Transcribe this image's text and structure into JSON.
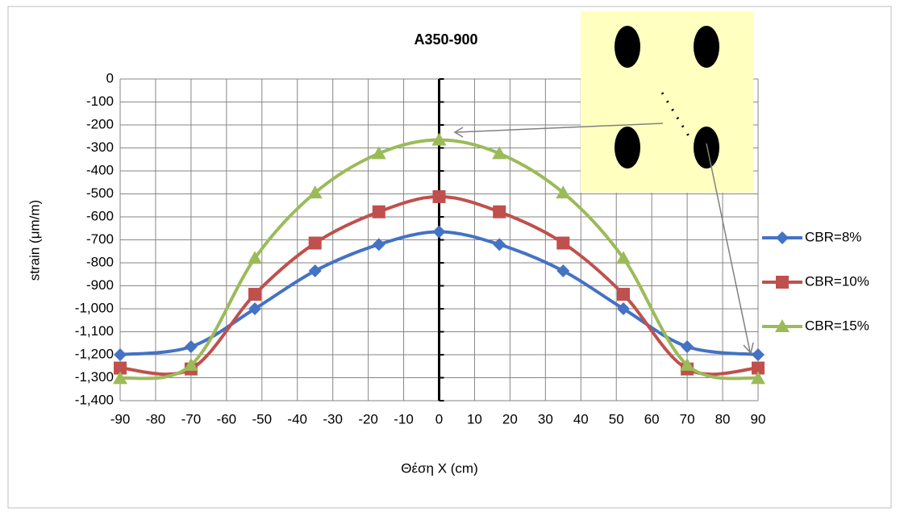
{
  "chart_data": {
    "type": "line",
    "title": "A350-900",
    "x_label": "Θέση X (cm)",
    "y_label": "strain (μm/m)",
    "x": [
      -90,
      -70,
      -52,
      -35,
      -17,
      0,
      17,
      35,
      52,
      70,
      90
    ],
    "series": [
      {
        "name": "CBR=8%",
        "color": "#4472c4",
        "marker": "diamond",
        "values": [
          -1200,
          -1165,
          -1000,
          -835,
          -720,
          -665,
          -720,
          -835,
          -1000,
          -1165,
          -1200
        ]
      },
      {
        "name": "CBR=10%",
        "color": "#c0504d",
        "marker": "square",
        "values": [
          -1258,
          -1262,
          -937,
          -714,
          -578,
          -512,
          -578,
          -714,
          -937,
          -1262,
          -1258
        ]
      },
      {
        "name": "CBR=15%",
        "color": "#9bbb59",
        "marker": "triangle",
        "values": [
          -1303,
          -1245,
          -780,
          -495,
          -324,
          -265,
          -324,
          -495,
          -780,
          -1245,
          -1303
        ]
      }
    ],
    "xlim": [
      -90,
      90
    ],
    "xticks": [
      -90,
      -80,
      -70,
      -60,
      -50,
      -40,
      -30,
      -20,
      -10,
      0,
      10,
      20,
      30,
      40,
      50,
      60,
      70,
      80,
      90
    ],
    "ylim": [
      -1400,
      0
    ],
    "yticks": [
      0,
      -100,
      -200,
      -300,
      -400,
      -500,
      -600,
      -700,
      -800,
      -900,
      {
        "value": -1000,
        "label": "-1,000"
      },
      {
        "value": -1100,
        "label": "-1,100"
      },
      {
        "value": -1200,
        "label": "-1,200"
      },
      {
        "value": -1300,
        "label": "-1,300"
      },
      {
        "value": -1400,
        "label": "-1,400"
      }
    ],
    "grid": true,
    "legend": "right"
  }
}
